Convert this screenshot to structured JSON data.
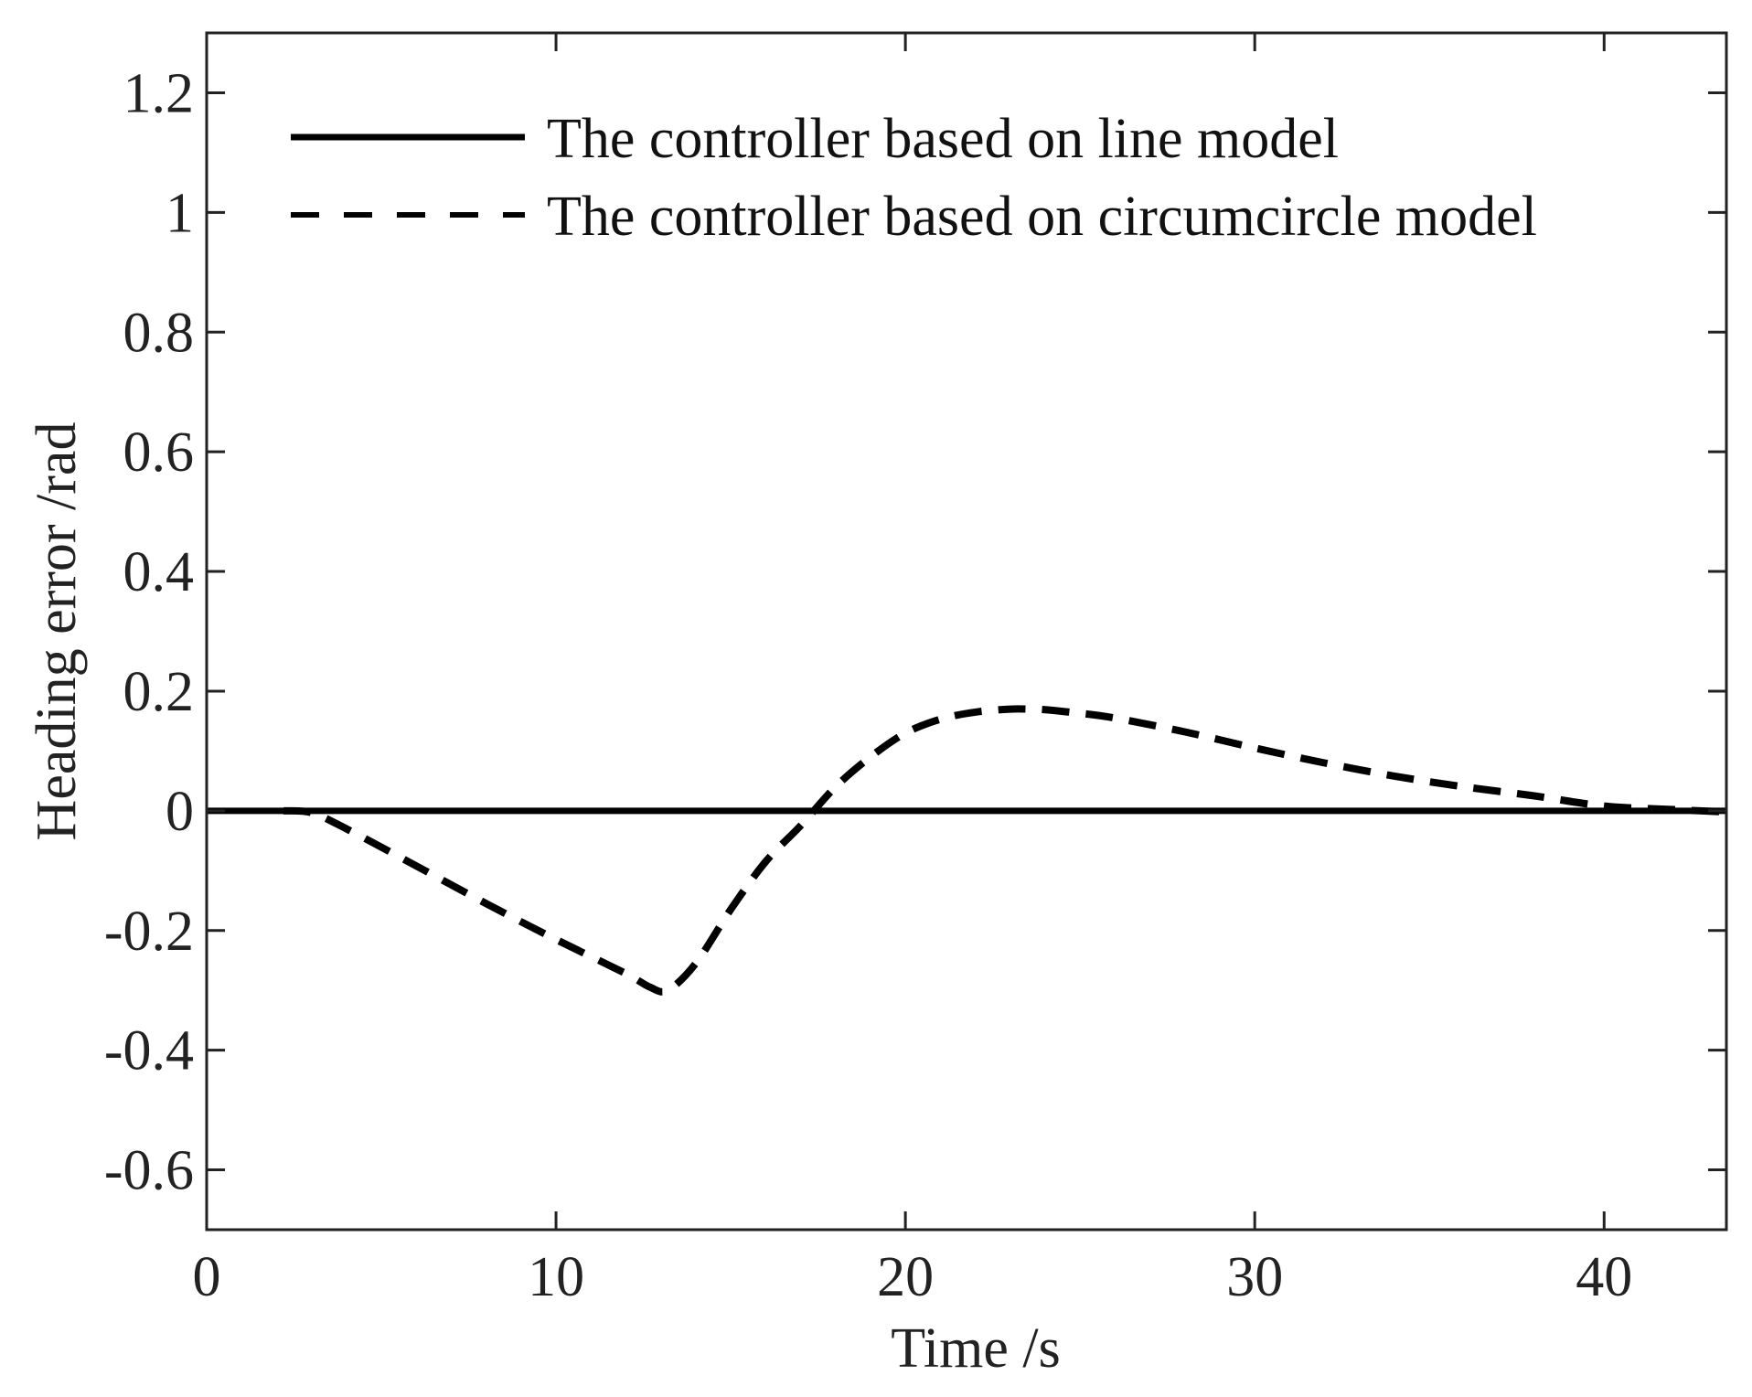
{
  "chart_data": {
    "type": "line",
    "xlabel": "Time /s",
    "ylabel": "Heading error /rad",
    "xlim": [
      0,
      43.5
    ],
    "ylim": [
      -0.7,
      1.3
    ],
    "x_ticks": [
      0,
      10,
      20,
      30,
      40
    ],
    "x_tick_labels": [
      "0",
      "10",
      "20",
      "30",
      "40"
    ],
    "y_ticks": [
      -0.6,
      -0.4,
      -0.2,
      0,
      0.2,
      0.4,
      0.6,
      0.8,
      1,
      1.2
    ],
    "y_tick_labels": [
      "-0.6",
      "-0.4",
      "-0.2",
      "0",
      "0.2",
      "0.4",
      "0.6",
      "0.8",
      "1",
      "1.2"
    ],
    "grid": false,
    "legend_position": "top-left",
    "series": [
      {
        "name": "The controller based on line model",
        "style": "solid",
        "color": "#000000",
        "x": [
          0,
          43.5
        ],
        "y": [
          0,
          0
        ]
      },
      {
        "name": "The controller based on circumcircle model",
        "style": "dashed",
        "color": "#000000",
        "x": [
          2.2,
          3,
          4,
          6,
          8,
          10,
          12,
          12.7,
          13.2,
          14,
          15,
          16,
          17,
          18,
          19,
          20,
          21,
          22,
          23,
          23.5,
          24,
          25,
          26,
          28,
          30,
          32,
          34,
          36,
          38,
          40,
          42,
          43.5
        ],
        "y": [
          0,
          -0.003,
          -0.03,
          -0.092,
          -0.155,
          -0.215,
          -0.272,
          -0.295,
          -0.3,
          -0.255,
          -0.165,
          -0.085,
          -0.025,
          0.04,
          0.09,
          0.13,
          0.153,
          0.165,
          0.17,
          0.17,
          0.169,
          0.163,
          0.155,
          0.132,
          0.105,
          0.08,
          0.058,
          0.04,
          0.025,
          0.008,
          0.002,
          -0.002
        ]
      }
    ]
  }
}
